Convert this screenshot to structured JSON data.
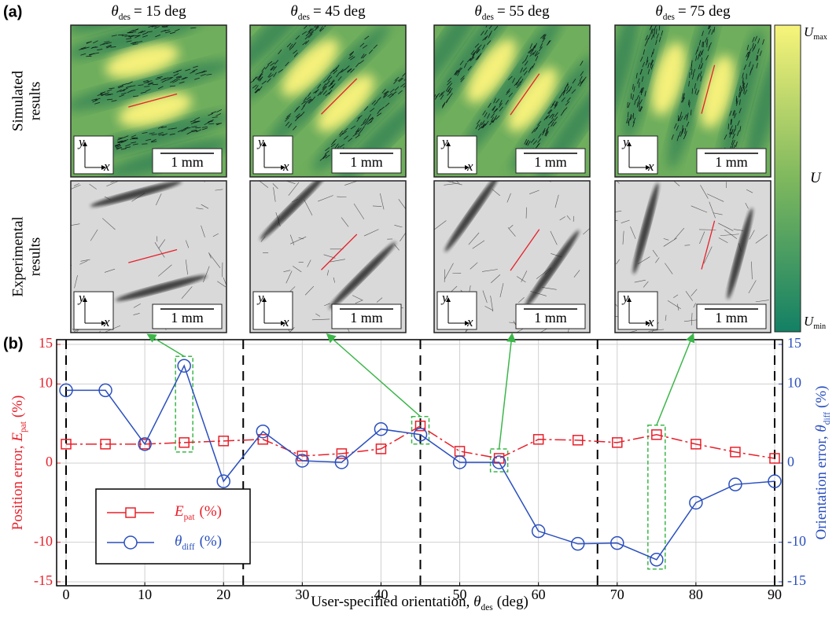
{
  "panel_a": {
    "label": "(a)",
    "row_labels": [
      [
        "Simulated",
        "results"
      ],
      [
        "Experimental",
        "results"
      ]
    ],
    "columns": [
      {
        "symbol": "θ",
        "sub": "des",
        "text": "= 15 deg"
      },
      {
        "symbol": "θ",
        "sub": "des",
        "text": "= 45 deg"
      },
      {
        "symbol": "θ",
        "sub": "des",
        "text": "= 55 deg"
      },
      {
        "symbol": "θ",
        "sub": "des",
        "text": "= 75 deg"
      }
    ],
    "scale_bar": "1 mm",
    "axis_x": "x",
    "axis_y": "y",
    "colorbar": {
      "symbol": "U",
      "max_sub": "max",
      "min_sub": "min"
    }
  },
  "chart_data": {
    "type": "line",
    "label": "(b)",
    "x_label": {
      "text": "User-specified orientation, ",
      "symbol": "θ",
      "sub": "des",
      "unit": "(deg)"
    },
    "y_label": {
      "text": "Position error, ",
      "symbol": "E",
      "sub": "pat",
      "unit": "(%)"
    },
    "y2_label": {
      "text": "Orientation error, ",
      "symbol": "θ",
      "sub": "diff",
      "unit": "(%)"
    },
    "x": [
      0,
      5,
      10,
      15,
      20,
      25,
      30,
      35,
      40,
      45,
      50,
      55,
      60,
      65,
      70,
      75,
      80,
      85,
      90
    ],
    "xlim": [
      -1.2,
      91
    ],
    "xticks": [
      0,
      10,
      20,
      30,
      40,
      50,
      60,
      70,
      80,
      90
    ],
    "ylim": [
      -15.5,
      15.6
    ],
    "yticks": [
      -15,
      -10,
      0,
      10,
      15
    ],
    "y2lim": [
      -15.5,
      15.6
    ],
    "y2ticks": [
      -15,
      -10,
      0,
      10,
      15
    ],
    "grid": true,
    "dashed_x": [
      0,
      22.5,
      45,
      67.5,
      90
    ],
    "highlights": [
      15,
      45,
      55,
      75
    ],
    "legend": "lower left",
    "series": [
      {
        "name": "E",
        "name_sub": "pat",
        "name_unit": "(%)",
        "color": "#e8202a",
        "marker": "square",
        "values": [
          2.4,
          2.4,
          2.4,
          2.6,
          2.8,
          3.0,
          0.9,
          1.2,
          1.8,
          4.7,
          1.5,
          0.6,
          3.0,
          2.9,
          2.6,
          3.6,
          2.4,
          1.4,
          0.6
        ]
      },
      {
        "name": "θ",
        "name_sub": "diff",
        "name_unit": "(%)",
        "color": "#2a4fbf",
        "marker": "circle",
        "axis": "y2",
        "values": [
          9.2,
          9.2,
          2.4,
          12.3,
          -2.3,
          4.0,
          0.3,
          0.1,
          4.3,
          3.6,
          0.1,
          0.1,
          -8.6,
          -10.2,
          -10.1,
          -12.2,
          -5.0,
          -2.7,
          -2.3
        ]
      }
    ]
  }
}
